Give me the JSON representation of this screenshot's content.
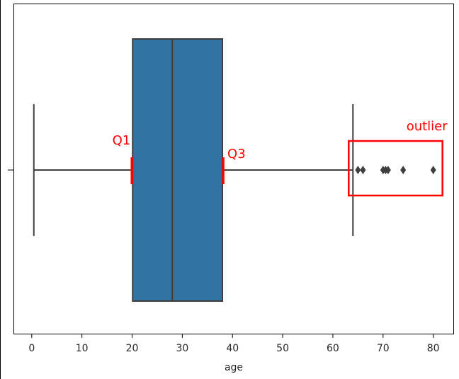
{
  "chart_data": {
    "type": "boxplot",
    "title": "",
    "xlabel": "age",
    "ylabel": "",
    "xlim": [
      -3.5,
      84
    ],
    "x_ticks": [
      0,
      10,
      20,
      30,
      40,
      50,
      60,
      70,
      80
    ],
    "orientation": "horizontal",
    "grid": false,
    "box": {
      "whisker_low": 0.42,
      "q1": 20.1,
      "median": 28,
      "q3": 38,
      "whisker_high": 64,
      "outliers": [
        65,
        66,
        70,
        70.5,
        71,
        74,
        80
      ],
      "color": "#3274a1",
      "line_color": "#3f3f3f"
    },
    "annotations": [
      {
        "text": "Q1",
        "target": "q1",
        "color": "#ff0000"
      },
      {
        "text": "Q3",
        "target": "q3",
        "color": "#ff0000"
      },
      {
        "text": "outlier",
        "target": "outliers",
        "color": "#ff0000"
      }
    ]
  }
}
